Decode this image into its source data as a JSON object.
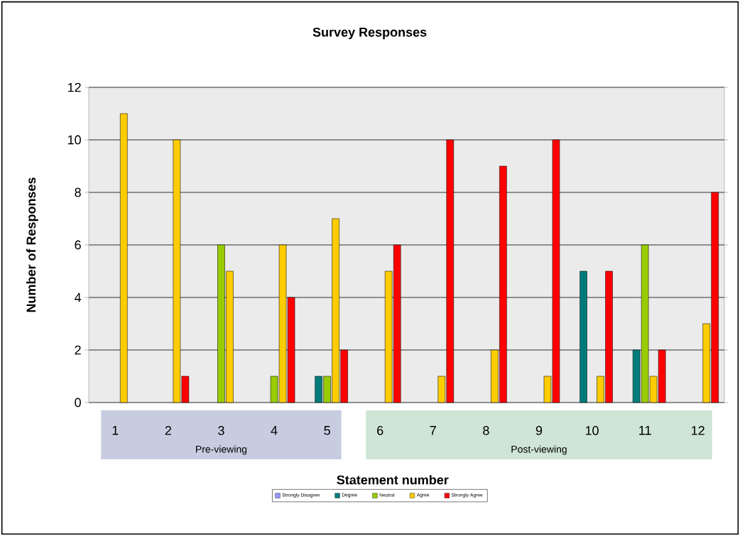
{
  "chart_data": {
    "type": "bar",
    "title": "Survey Responses",
    "xlabel": "Statement number",
    "ylabel": "Number of Responses",
    "categories": [
      "1",
      "2",
      "3",
      "4",
      "5",
      "6",
      "7",
      "8",
      "9",
      "10",
      "11",
      "12"
    ],
    "series": [
      {
        "name": "Strongly Disagree",
        "color": "#9999ff",
        "values": [
          0,
          0,
          0,
          0,
          0,
          0,
          0,
          0,
          0,
          0,
          0,
          0
        ]
      },
      {
        "name": "Degree",
        "color": "#007b7b",
        "values": [
          0,
          0,
          0,
          0,
          1,
          0,
          0,
          0,
          0,
          5,
          2,
          0
        ]
      },
      {
        "name": "Neutral",
        "color": "#99cc00",
        "values": [
          0,
          0,
          6,
          1,
          1,
          0,
          0,
          0,
          0,
          0,
          6,
          0
        ]
      },
      {
        "name": "Agree",
        "color": "#ffcc00",
        "values": [
          11,
          10,
          5,
          6,
          7,
          5,
          1,
          2,
          1,
          1,
          1,
          3
        ]
      },
      {
        "name": "Strongly Agree",
        "color": "#ff0000",
        "values": [
          0,
          1,
          0,
          4,
          2,
          6,
          10,
          9,
          10,
          5,
          2,
          8
        ]
      }
    ],
    "ylim": [
      0,
      12
    ],
    "yticks": [
      0,
      2,
      4,
      6,
      8,
      10,
      12
    ],
    "grid": "y",
    "legend": "bottom",
    "annotations": [
      "Pre-viewing",
      "Post-viewing"
    ]
  }
}
